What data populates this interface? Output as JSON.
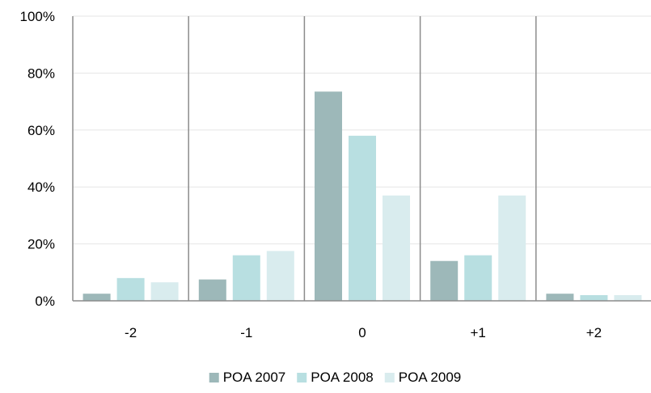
{
  "chart_data": {
    "type": "bar",
    "categories": [
      "-2",
      "-1",
      "0",
      "+1",
      "+2"
    ],
    "series": [
      {
        "name": "POA 2007",
        "values": [
          2.5,
          7.5,
          73.5,
          14,
          2.5
        ],
        "color": "#9db8b9"
      },
      {
        "name": "POA 2008",
        "values": [
          8,
          16,
          58,
          16,
          2
        ],
        "color": "#b8dfe1"
      },
      {
        "name": "POA 2009",
        "values": [
          6.5,
          17.5,
          37,
          37,
          2
        ],
        "color": "#d9ecee"
      }
    ],
    "y_ticks": [
      "0%",
      "20%",
      "40%",
      "60%",
      "80%",
      "100%"
    ],
    "ylim": [
      0,
      100
    ],
    "legend_position": "bottom",
    "grid": true,
    "title": "",
    "xlabel": "",
    "ylabel": ""
  }
}
